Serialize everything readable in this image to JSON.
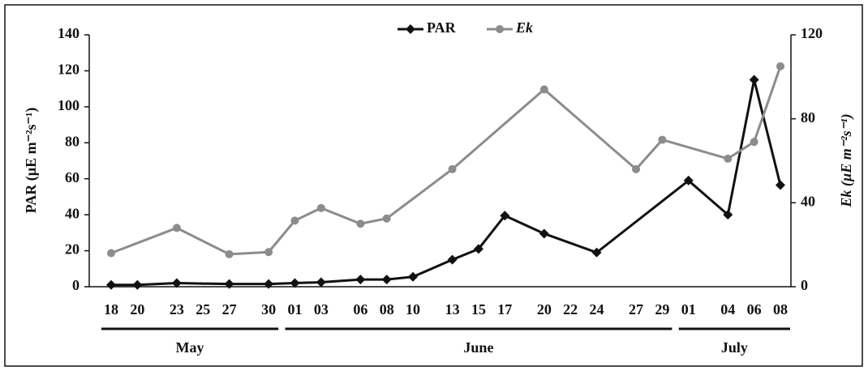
{
  "chart_data": {
    "type": "line",
    "y_label": "PAR (µE m⁻²s⁻¹)",
    "y2_label": "Ek (µE m⁻²s⁻¹)",
    "ylim": [
      0,
      140
    ],
    "yticks": [
      0,
      20,
      40,
      60,
      80,
      100,
      120,
      140
    ],
    "y2lim": [
      0,
      120
    ],
    "y2ticks": [
      0,
      40,
      80,
      120
    ],
    "xticks": [
      {
        "value": "May 18",
        "label": "18"
      },
      {
        "value": "May 20",
        "label": "20"
      },
      {
        "value": "May 23",
        "label": "23"
      },
      {
        "value": "May 25",
        "label": "25"
      },
      {
        "value": "May 27",
        "label": "27"
      },
      {
        "value": "May 30",
        "label": "30"
      },
      {
        "value": "June 01",
        "label": "01"
      },
      {
        "value": "June 03",
        "label": "03"
      },
      {
        "value": "June 06",
        "label": "06"
      },
      {
        "value": "June 08",
        "label": "08"
      },
      {
        "value": "June 10",
        "label": "10"
      },
      {
        "value": "June 13",
        "label": "13"
      },
      {
        "value": "June 15",
        "label": "15"
      },
      {
        "value": "June 17",
        "label": "17"
      },
      {
        "value": "June 20",
        "label": "20"
      },
      {
        "value": "June 22",
        "label": "22"
      },
      {
        "value": "June 24",
        "label": "24"
      },
      {
        "value": "June 27",
        "label": "27"
      },
      {
        "value": "June 29",
        "label": "29"
      },
      {
        "value": "July 01",
        "label": "01"
      },
      {
        "value": "July 04",
        "label": "04"
      },
      {
        "value": "July 06",
        "label": "06"
      },
      {
        "value": "July 08",
        "label": "08"
      }
    ],
    "months": [
      "May",
      "June",
      "July"
    ],
    "series": [
      {
        "name": "PAR",
        "color": "#111111",
        "marker": "diamond",
        "x": [
          "May 18",
          "May 20",
          "May 23",
          "May 27",
          "May 30",
          "June 01",
          "June 03",
          "June 06",
          "June 08",
          "June 10",
          "June 13",
          "June 15",
          "June 17",
          "June 20",
          "June 24",
          "July 01",
          "July 04",
          "July 06",
          "July 08"
        ],
        "values": [
          1,
          1,
          2,
          1.5,
          1.5,
          2,
          2.5,
          4,
          4,
          5.5,
          15,
          21,
          39.5,
          29.5,
          19,
          59,
          40,
          115,
          56.5
        ]
      },
      {
        "name": "Ek",
        "color": "#8c8c8c",
        "marker": "circle",
        "axis": "y2",
        "x": [
          "May 18",
          "May 23",
          "May 27",
          "May 30",
          "June 01",
          "June 03",
          "June 06",
          "June 08",
          "June 13",
          "June 20",
          "June 27",
          "June 29",
          "July 04",
          "July 06",
          "July 08"
        ],
        "values": [
          16,
          28,
          15.5,
          16.5,
          31.5,
          37.5,
          30,
          32.5,
          56,
          94,
          56,
          70,
          61,
          69,
          105
        ]
      }
    ]
  }
}
